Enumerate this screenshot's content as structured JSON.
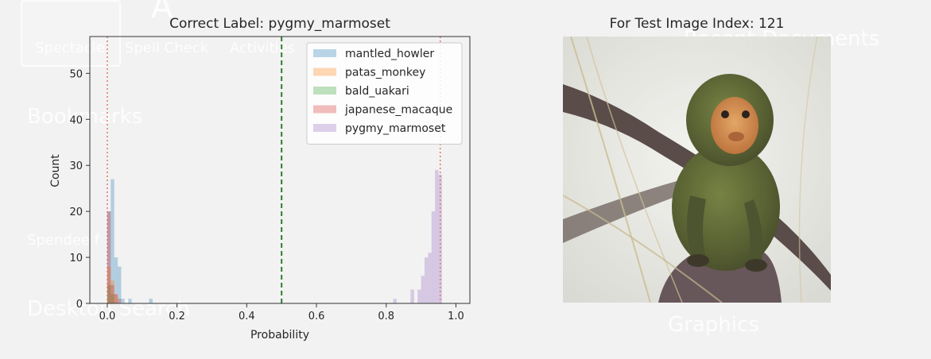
{
  "background_ui": {
    "items": [
      "Spectacle",
      "Spell Check",
      "Activities",
      "Bookmarks",
      "Spendee f",
      "Desktop Search",
      "Graphics",
      "Recent Documents",
      "A"
    ]
  },
  "left_panel": {
    "title": "Correct Label: pygmy_marmoset"
  },
  "right_panel": {
    "title": "For Test Image Index: 121"
  },
  "chart_data": {
    "type": "histogram",
    "title": "Correct Label: pygmy_marmoset",
    "xlabel": "Probability",
    "ylabel": "Count",
    "xlim": [
      -0.05,
      1.04
    ],
    "ylim": [
      0,
      58
    ],
    "xticks": [
      0.0,
      0.2,
      0.4,
      0.6,
      0.8,
      1.0
    ],
    "xtick_labels": [
      "0.0",
      "0.2",
      "0.4",
      "0.6",
      "0.8",
      "1.0"
    ],
    "yticks": [
      0,
      10,
      20,
      30,
      40,
      50
    ],
    "ytick_labels": [
      "0",
      "10",
      "20",
      "30",
      "40",
      "50"
    ],
    "bin_width": 0.01,
    "legend_position": "upper right",
    "series": [
      {
        "name": "mantled_howler",
        "color": "#1f77b4",
        "bins": [
          [
            0.0,
            20
          ],
          [
            0.01,
            27
          ],
          [
            0.02,
            10
          ],
          [
            0.03,
            8
          ],
          [
            0.04,
            1
          ],
          [
            0.06,
            1
          ],
          [
            0.12,
            1
          ]
        ]
      },
      {
        "name": "patas_monkey",
        "color": "#ff7f0e",
        "bins": [
          [
            0.0,
            8
          ],
          [
            0.01,
            5
          ],
          [
            0.02,
            2
          ]
        ]
      },
      {
        "name": "bald_uakari",
        "color": "#2ca02c",
        "bins": [
          [
            0.0,
            4
          ],
          [
            0.01,
            2
          ]
        ]
      },
      {
        "name": "japanese_macaque",
        "color": "#d62728",
        "bins": [
          [
            0.0,
            20
          ],
          [
            0.01,
            4
          ],
          [
            0.02,
            2
          ],
          [
            0.03,
            1
          ]
        ]
      },
      {
        "name": "pygmy_marmoset",
        "color": "#9467bd",
        "bins": [
          [
            0.82,
            1
          ],
          [
            0.87,
            3
          ],
          [
            0.89,
            3
          ],
          [
            0.9,
            6
          ],
          [
            0.91,
            10
          ],
          [
            0.92,
            11
          ],
          [
            0.93,
            20
          ],
          [
            0.94,
            29
          ],
          [
            0.95,
            28
          ]
        ]
      }
    ],
    "vlines": [
      {
        "x": 0.5,
        "color": "#2e7d32",
        "style": "dashed"
      },
      {
        "x": 0.0,
        "color": "#e57373",
        "style": "dotted"
      },
      {
        "x": 0.955,
        "color": "#e57373",
        "style": "dotted"
      }
    ]
  }
}
